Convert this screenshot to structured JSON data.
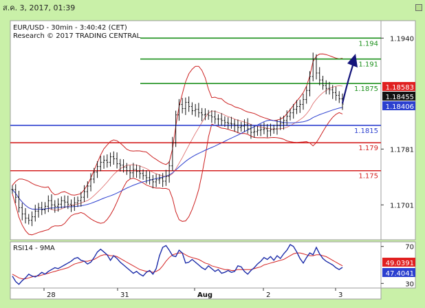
{
  "header": {
    "timestamp": "ส.ค. 3, 2017, 01:39"
  },
  "chart_data": {
    "type": "candlestick",
    "title": "EUR/USD - 30min - 3:40:42 (CET)",
    "subtitle": "Research © 2017 TRADING CENTRAL",
    "ylim": [
      1.1651,
      1.1965
    ],
    "y_ticks": [
      "1.1940",
      "1.1781",
      "1.1701"
    ],
    "x_ticks": [
      "28",
      "31",
      "Aug",
      "2",
      "3"
    ],
    "levels": [
      {
        "label": "1.194",
        "value": 1.194,
        "color": "#1a8f1a"
      },
      {
        "label": "1.191",
        "value": 1.191,
        "color": "#1a8f1a"
      },
      {
        "label": "1.1875",
        "value": 1.1875,
        "color": "#1a8f1a"
      },
      {
        "label": "1.1815",
        "value": 1.1815,
        "color": "#2b3fcf"
      },
      {
        "label": "1.179",
        "value": 1.179,
        "color": "#d42020"
      },
      {
        "label": "1.175",
        "value": 1.175,
        "color": "#d42020"
      }
    ],
    "price_tags": [
      {
        "label": "1.18583",
        "value": 1.18583,
        "bg": "#e02020",
        "fg": "#ffffff"
      },
      {
        "label": "1.18455",
        "value": 1.18455,
        "bg": "#111111",
        "fg": "#ffffff"
      },
      {
        "label": "1.18406",
        "value": 1.18406,
        "bg": "#2b3fcf",
        "fg": "#ffffff"
      }
    ],
    "close_series": [
      1.1723,
      1.1712,
      1.1697,
      1.1688,
      1.1682,
      1.1679,
      1.1684,
      1.1692,
      1.1697,
      1.1694,
      1.1699,
      1.1707,
      1.1701,
      1.1699,
      1.1702,
      1.1707,
      1.1705,
      1.1702,
      1.17,
      1.1704,
      1.1707,
      1.1712,
      1.172,
      1.1728,
      1.1738,
      1.1748,
      1.1756,
      1.1762,
      1.1765,
      1.1762,
      1.177,
      1.1767,
      1.176,
      1.1758,
      1.1755,
      1.175,
      1.1747,
      1.1752,
      1.1749,
      1.1746,
      1.1743,
      1.174,
      1.1737,
      1.1734,
      1.1737,
      1.1739,
      1.1735,
      1.1742,
      1.1757,
      1.179,
      1.183,
      1.1845,
      1.1839,
      1.1848,
      1.1842,
      1.1836,
      1.1838,
      1.1833,
      1.183,
      1.1831,
      1.1829,
      1.1827,
      1.1824,
      1.1824,
      1.1822,
      1.1819,
      1.1818,
      1.1817,
      1.1815,
      1.1812,
      1.1814,
      1.1816,
      1.181,
      1.1805,
      1.1806,
      1.1808,
      1.1809,
      1.181,
      1.1807,
      1.1809,
      1.181,
      1.1815,
      1.1818,
      1.1822,
      1.1828,
      1.1833,
      1.1838,
      1.1842,
      1.1845,
      1.1852,
      1.1865,
      1.1885,
      1.191,
      1.189,
      1.188,
      1.1872,
      1.1868,
      1.1866,
      1.1862,
      1.1858,
      1.1853,
      1.18455
    ],
    "indicator": {
      "label": "RSI14 - 9MA",
      "ylim": [
        25,
        75
      ],
      "ticks": [
        "70",
        "30"
      ],
      "rsi": [
        38,
        32,
        29,
        33,
        36,
        40,
        38,
        37,
        39,
        42,
        40,
        43,
        45,
        47,
        46,
        48,
        50,
        52,
        54,
        57,
        58,
        55,
        54,
        51,
        53,
        58,
        64,
        67,
        64,
        61,
        55,
        60,
        57,
        53,
        50,
        47,
        44,
        41,
        43,
        40,
        38,
        42,
        44,
        40,
        46,
        60,
        69,
        71,
        66,
        60,
        59,
        66,
        63,
        52,
        53,
        56,
        53,
        50,
        47,
        45,
        49,
        46,
        43,
        45,
        41,
        42,
        44,
        42,
        43,
        49,
        48,
        43,
        40,
        44,
        47,
        51,
        54,
        58,
        56,
        59,
        55,
        60,
        57,
        62,
        66,
        72,
        70,
        64,
        57,
        52,
        58,
        63,
        61,
        69,
        62,
        57,
        54,
        52,
        50,
        47,
        45,
        47.4041
      ],
      "ma": [
        40,
        38,
        36,
        35,
        35,
        36,
        37,
        38,
        38,
        39,
        40,
        41,
        42,
        43,
        44,
        45,
        46,
        47,
        49,
        51,
        52,
        53,
        54,
        54,
        55,
        56,
        58,
        60,
        61,
        61,
        60,
        60,
        59,
        57,
        55,
        53,
        51,
        49,
        47,
        45,
        44,
        43,
        43,
        42,
        43,
        45,
        49,
        54,
        58,
        61,
        62,
        63,
        63,
        61,
        59,
        58,
        57,
        56,
        54,
        52,
        51,
        49,
        48,
        47,
        46,
        45,
        45,
        44,
        44,
        45,
        45,
        45,
        45,
        45,
        46,
        47,
        48,
        50,
        51,
        52,
        53,
        54,
        55,
        56,
        58,
        60,
        62,
        63,
        63,
        62,
        61,
        60,
        60,
        61,
        61,
        60,
        59,
        57,
        55,
        53,
        51,
        49.0391
      ],
      "tags": [
        {
          "label": "49.0391",
          "value": 49.0391,
          "bg": "#e02020",
          "fg": "#ffffff"
        },
        {
          "label": "47.4041",
          "value": 47.4041,
          "bg": "#2b3fcf",
          "fg": "#ffffff"
        }
      ]
    }
  }
}
